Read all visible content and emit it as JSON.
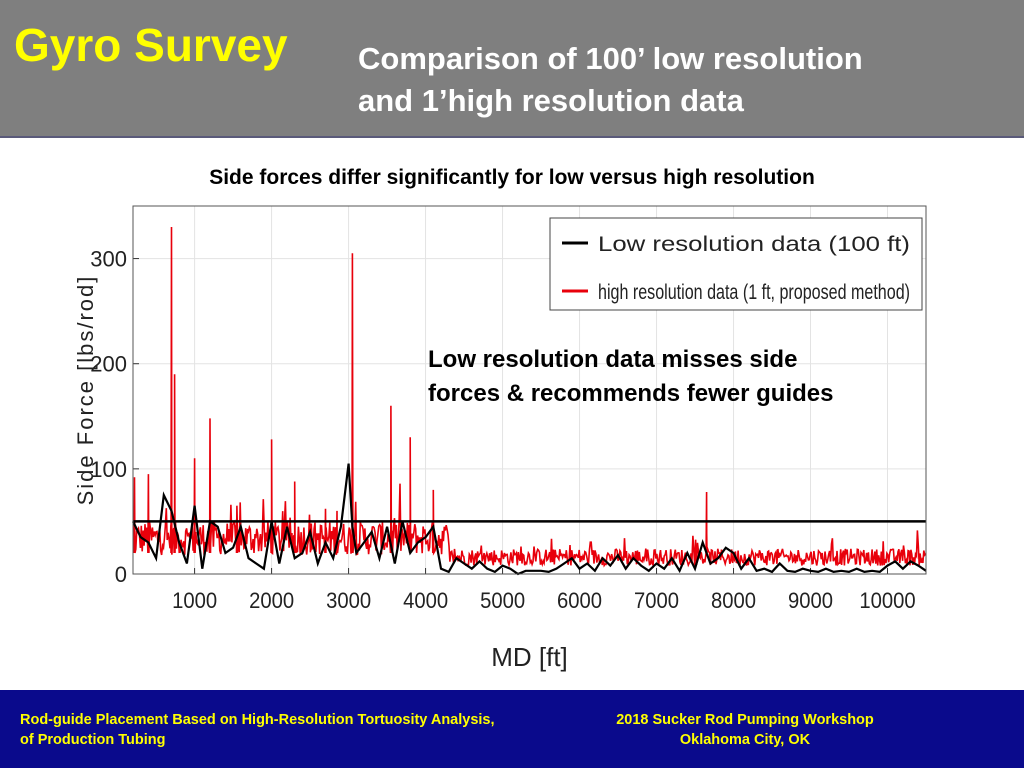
{
  "header": {
    "title": "Gyro Survey",
    "subtitle_line1": "Comparison of  100’  low resolution",
    "subtitle_line2": "and 1’high resolution data"
  },
  "chart_heading": "Side forces differ significantly for low versus high resolution",
  "chart_data": {
    "type": "line",
    "xlabel": "MD [ft]",
    "ylabel": "Side Force [lbs/rod]",
    "xlim": [
      200,
      10500
    ],
    "ylim": [
      0,
      350
    ],
    "x_ticks": [
      1000,
      2000,
      3000,
      4000,
      5000,
      6000,
      7000,
      8000,
      9000,
      10000
    ],
    "y_ticks": [
      0,
      100,
      200,
      300
    ],
    "grid": true,
    "legend_position": "top-right",
    "annotation_line1": "Low resolution data misses side",
    "annotation_line2": "forces & recommends fewer guides",
    "threshold_line": {
      "y": 50,
      "color": "#000000"
    },
    "series": [
      {
        "name": "Low resolution data (100 ft)",
        "color": "#000000",
        "x": [
          200,
          300,
          400,
          500,
          600,
          700,
          800,
          900,
          1000,
          1100,
          1200,
          1300,
          1400,
          1500,
          1600,
          1700,
          1800,
          1900,
          2000,
          2100,
          2200,
          2300,
          2400,
          2500,
          2600,
          2700,
          2800,
          2900,
          3000,
          3050,
          3100,
          3200,
          3300,
          3400,
          3500,
          3600,
          3700,
          3800,
          3900,
          4000,
          4100,
          4200,
          4300,
          4400,
          4500,
          4600,
          4700,
          4800,
          4900,
          5000,
          5100,
          5200,
          5300,
          5400,
          5500,
          5600,
          5700,
          5800,
          5900,
          6000,
          6100,
          6200,
          6300,
          6400,
          6500,
          6600,
          6700,
          6800,
          6900,
          7000,
          7100,
          7200,
          7300,
          7400,
          7500,
          7600,
          7700,
          7800,
          7900,
          8000,
          8100,
          8200,
          8300,
          8400,
          8500,
          8600,
          8700,
          8800,
          8900,
          9000,
          9100,
          9200,
          9300,
          9400,
          9500,
          9600,
          9700,
          9800,
          9900,
          10000,
          10100,
          10200,
          10300,
          10400,
          10500
        ],
        "y": [
          50,
          35,
          30,
          15,
          75,
          60,
          30,
          10,
          65,
          5,
          50,
          45,
          20,
          25,
          45,
          15,
          10,
          5,
          50,
          10,
          45,
          15,
          20,
          40,
          10,
          30,
          15,
          45,
          105,
          45,
          20,
          30,
          40,
          15,
          45,
          10,
          50,
          20,
          30,
          35,
          45,
          5,
          2,
          15,
          10,
          5,
          12,
          5,
          2,
          8,
          5,
          0,
          3,
          3,
          3,
          2,
          5,
          10,
          15,
          5,
          10,
          3,
          15,
          8,
          18,
          5,
          15,
          8,
          3,
          10,
          5,
          15,
          3,
          20,
          5,
          30,
          10,
          15,
          25,
          20,
          5,
          15,
          3,
          5,
          2,
          10,
          3,
          2,
          5,
          3,
          2,
          5,
          2,
          3,
          2,
          5,
          2,
          3,
          2,
          8,
          12,
          5,
          12,
          8,
          3
        ]
      },
      {
        "name": "high resolution data (1 ft, proposed method)",
        "color": "#e8000b",
        "peaks": [
          {
            "x": 220,
            "y": 92
          },
          {
            "x": 400,
            "y": 95
          },
          {
            "x": 700,
            "y": 330
          },
          {
            "x": 740,
            "y": 190
          },
          {
            "x": 1000,
            "y": 110
          },
          {
            "x": 1200,
            "y": 148
          },
          {
            "x": 1550,
            "y": 65
          },
          {
            "x": 2000,
            "y": 128
          },
          {
            "x": 2300,
            "y": 88
          },
          {
            "x": 2700,
            "y": 62
          },
          {
            "x": 2850,
            "y": 60
          },
          {
            "x": 3050,
            "y": 305
          },
          {
            "x": 3550,
            "y": 160
          },
          {
            "x": 3800,
            "y": 130
          },
          {
            "x": 4100,
            "y": 80
          },
          {
            "x": 7650,
            "y": 78
          }
        ]
      }
    ]
  },
  "footer": {
    "left_line1": "Rod-guide Placement Based on High-Resolution Tortuosity Analysis,",
    "left_line2": "of Production Tubing",
    "right_line1": "2018 Sucker Rod Pumping Workshop",
    "right_line2": "Oklahoma City, OK"
  }
}
